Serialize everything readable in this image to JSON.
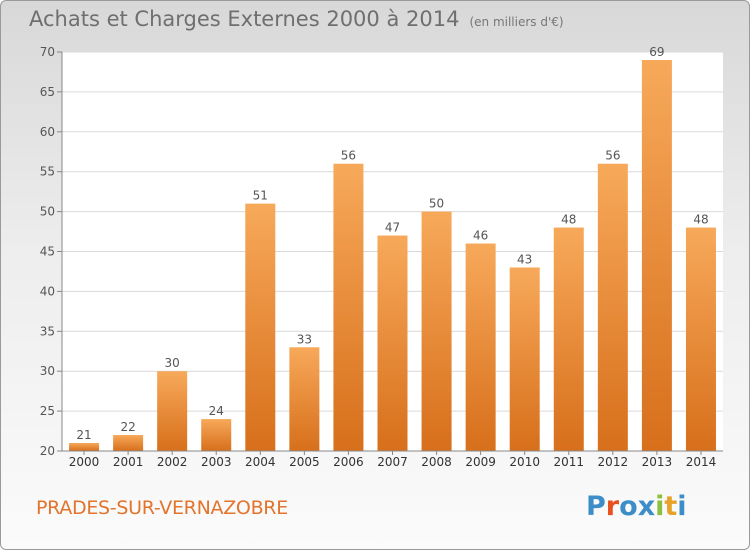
{
  "title": "Achats et Charges Externes 2000 à 2014",
  "subtitle": "(en milliers d'€)",
  "commune": "PRADES-SUR-VERNAZOBRE",
  "logo": {
    "text": "Proxiti",
    "colors": [
      "#3c8dc8",
      "#e8511f",
      "#3c8dc8",
      "#3c8dc8",
      "#8cbf3f",
      "#e8a22a",
      "#3c8dc8"
    ]
  },
  "colors": {
    "bar_top": "#f7a95a",
    "bar_bottom": "#d76f1b",
    "grid": "#d9d9d9",
    "axis": "#888888",
    "label": "#555555"
  },
  "chart_data": {
    "type": "bar",
    "categories": [
      "2000",
      "2001",
      "2002",
      "2003",
      "2004",
      "2005",
      "2006",
      "2007",
      "2008",
      "2009",
      "2010",
      "2011",
      "2012",
      "2013",
      "2014"
    ],
    "values": [
      21,
      22,
      30,
      24,
      51,
      33,
      56,
      47,
      50,
      46,
      43,
      48,
      56,
      69,
      48
    ],
    "ylim": [
      20,
      70
    ],
    "yticks": [
      20,
      25,
      30,
      35,
      40,
      45,
      50,
      55,
      60,
      65,
      70
    ],
    "grid": true,
    "data_labels": true
  }
}
